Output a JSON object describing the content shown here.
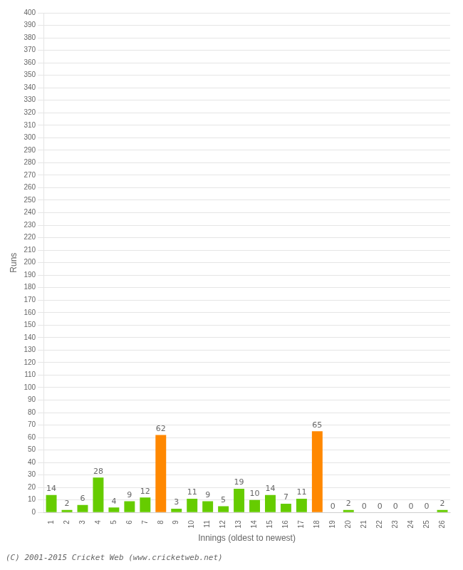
{
  "chart_data": {
    "type": "bar",
    "categories": [
      "1",
      "2",
      "3",
      "4",
      "5",
      "6",
      "7",
      "8",
      "9",
      "10",
      "11",
      "12",
      "13",
      "14",
      "15",
      "16",
      "17",
      "18",
      "19",
      "20",
      "21",
      "22",
      "23",
      "24",
      "25",
      "26"
    ],
    "values": [
      14,
      2,
      6,
      28,
      4,
      9,
      12,
      62,
      3,
      11,
      9,
      5,
      19,
      10,
      14,
      7,
      11,
      65,
      0,
      2,
      0,
      0,
      0,
      0,
      0,
      2
    ],
    "colors": [
      "#66cc00",
      "#66cc00",
      "#66cc00",
      "#66cc00",
      "#66cc00",
      "#66cc00",
      "#66cc00",
      "#ff8800",
      "#66cc00",
      "#66cc00",
      "#66cc00",
      "#66cc00",
      "#66cc00",
      "#66cc00",
      "#66cc00",
      "#66cc00",
      "#66cc00",
      "#ff8800",
      "#66cc00",
      "#66cc00",
      "#66cc00",
      "#66cc00",
      "#66cc00",
      "#66cc00",
      "#66cc00",
      "#66cc00"
    ],
    "xlabel": "Innings (oldest to newest)",
    "ylabel": "Runs",
    "ylim": [
      0,
      400
    ],
    "yticks": [
      0,
      10,
      20,
      30,
      40,
      50,
      60,
      70,
      80,
      90,
      100,
      110,
      120,
      130,
      140,
      150,
      160,
      170,
      180,
      190,
      200,
      210,
      220,
      230,
      240,
      250,
      260,
      270,
      280,
      290,
      300,
      310,
      320,
      330,
      340,
      350,
      360,
      370,
      380,
      390,
      400
    ],
    "grid": "y",
    "data_labels": true,
    "annotations": [
      "(C) 2001-2015 Cricket Web (www.cricketweb.net)"
    ]
  }
}
